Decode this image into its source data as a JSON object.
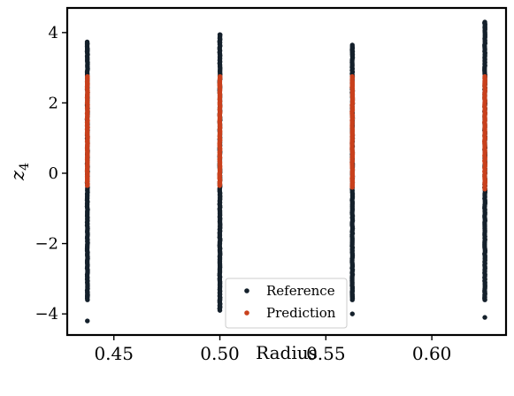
{
  "chart_data": {
    "type": "scatter",
    "xlabel": "Radius",
    "ylabel": "z",
    "ylabel_sub": "4",
    "xlim": [
      0.428,
      0.635
    ],
    "ylim": [
      -4.6,
      4.7
    ],
    "xticks": [
      0.45,
      0.5,
      0.55,
      0.6
    ],
    "xtick_labels": [
      "0.45",
      "0.50",
      "0.55",
      "0.60"
    ],
    "yticks": [
      -4,
      -2,
      0,
      2,
      4
    ],
    "ytick_labels": [
      "−4",
      "−2",
      "0",
      "2",
      "4"
    ],
    "grid": false,
    "legend": {
      "position": "bottom-center"
    },
    "series": [
      {
        "name": "Reference",
        "color": "#14202b",
        "x_values": [
          0.4375,
          0.5,
          0.5625,
          0.625
        ],
        "y_ranges": [
          [
            -3.6,
            3.75
          ],
          [
            -3.85,
            3.95
          ],
          [
            -3.6,
            3.65
          ],
          [
            -3.6,
            4.3
          ]
        ],
        "outliers": [
          [
            0.4375,
            -4.2
          ],
          [
            0.5,
            -3.9
          ],
          [
            0.5625,
            -4.0
          ],
          [
            0.625,
            -4.1
          ]
        ]
      },
      {
        "name": "Prediction",
        "color": "#c9401c",
        "x_values": [
          0.4375,
          0.5,
          0.5625,
          0.625
        ],
        "y_ranges": [
          [
            -0.35,
            2.75
          ],
          [
            -0.35,
            2.75
          ],
          [
            -0.4,
            2.75
          ],
          [
            -0.45,
            2.75
          ]
        ]
      }
    ]
  }
}
